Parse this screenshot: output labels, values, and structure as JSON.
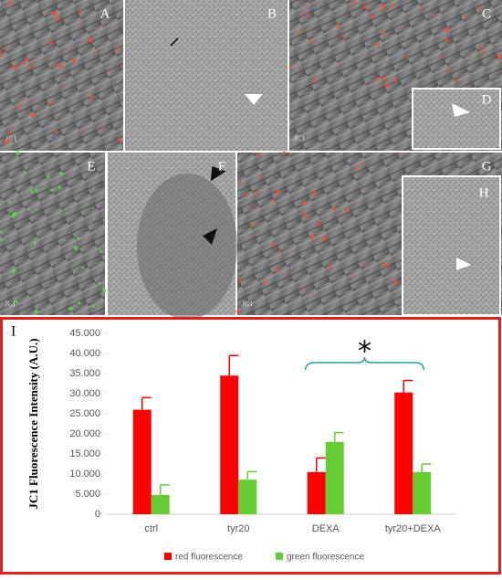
{
  "panels": [
    {
      "label": "A",
      "stain": "JC1"
    },
    {
      "label": "B"
    },
    {
      "label": "C",
      "stain": "JC1"
    },
    {
      "label": "D"
    },
    {
      "label": "E",
      "stain": "JC1"
    },
    {
      "label": "F"
    },
    {
      "label": "G",
      "stain": "JC1"
    },
    {
      "label": "H"
    }
  ],
  "chart_data": {
    "type": "bar",
    "panel_label": "I",
    "y_label": "JC1 Fluorescence  Intensity (A.U.)",
    "categories": [
      "ctrl",
      "tyr20",
      "DEXA",
      "tyr20+DEXA"
    ],
    "series": [
      {
        "name": "red fluorescence",
        "color": "#ff0000",
        "values": [
          26000,
          34500,
          10500,
          30300
        ],
        "errors": [
          3000,
          5000,
          3500,
          3000
        ]
      },
      {
        "name": "green fluorescence",
        "color": "#66cc33",
        "values": [
          4800,
          8600,
          18000,
          10500
        ],
        "errors": [
          2500,
          2000,
          2300,
          2000
        ]
      }
    ],
    "ylim": [
      0,
      45000
    ],
    "yticks": [
      0,
      {
        "value": 5000,
        "label": "5.000"
      },
      {
        "value": 10000,
        "label": "10.000"
      },
      {
        "value": 15000,
        "label": "15.000"
      },
      {
        "value": 20000,
        "label": "20.000"
      },
      {
        "value": 25000,
        "label": "25.000"
      },
      {
        "value": 30000,
        "label": "30.000"
      },
      {
        "value": 35000,
        "label": "35.000"
      },
      {
        "value": 40000,
        "label": "40.000"
      },
      {
        "value": 45000,
        "label": "45.000"
      }
    ],
    "grid": false,
    "annotation": "*",
    "legend": "bottom"
  }
}
